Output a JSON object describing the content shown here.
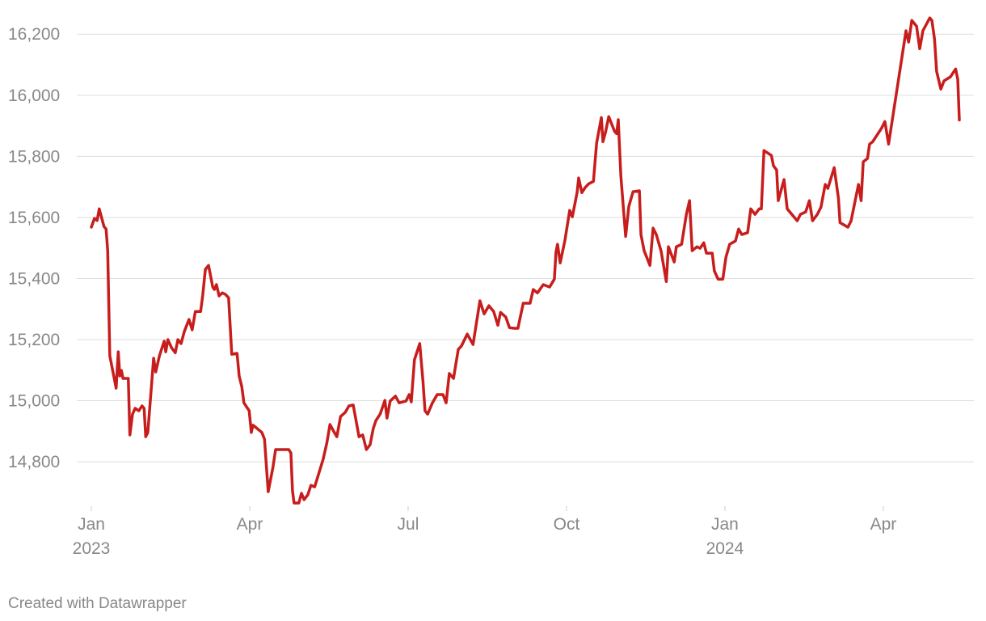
{
  "chart_data": {
    "type": "line",
    "footer": "Created with Datawrapper",
    "x": [
      0,
      0.06,
      0.11,
      0.15,
      0.24,
      0.28,
      0.31,
      0.35,
      0.41,
      0.47,
      0.51,
      0.54,
      0.57,
      0.6,
      0.7,
      0.73,
      0.78,
      0.83,
      0.9,
      0.96,
      1.0,
      1.03,
      1.07,
      1.18,
      1.22,
      1.29,
      1.38,
      1.41,
      1.45,
      1.52,
      1.59,
      1.64,
      1.7,
      1.76,
      1.85,
      1.91,
      1.97,
      2.07,
      2.11,
      2.16,
      2.22,
      2.3,
      2.33,
      2.37,
      2.42,
      2.48,
      2.54,
      2.6,
      2.66,
      2.76,
      2.8,
      2.85,
      2.89,
      2.99,
      3.03,
      3.06,
      3.14,
      3.23,
      3.28,
      3.35,
      3.44,
      3.49,
      3.74,
      3.78,
      3.81,
      3.84,
      3.93,
      3.98,
      4.03,
      4.1,
      4.16,
      4.23,
      4.39,
      4.46,
      4.52,
      4.58,
      4.65,
      4.72,
      4.81,
      4.88,
      4.96,
      5.07,
      5.14,
      5.21,
      5.28,
      5.34,
      5.39,
      5.47,
      5.56,
      5.6,
      5.66,
      5.76,
      5.83,
      5.96,
      6.02,
      6.06,
      6.12,
      6.22,
      6.28,
      6.32,
      6.37,
      6.46,
      6.55,
      6.66,
      6.72,
      6.78,
      6.86,
      6.95,
      7.01,
      7.12,
      7.23,
      7.36,
      7.44,
      7.53,
      7.62,
      7.7,
      7.75,
      7.85,
      7.92,
      8.01,
      8.08,
      8.18,
      8.31,
      8.37,
      8.45,
      8.56,
      8.68,
      8.77,
      8.8,
      8.83,
      8.88,
      8.97,
      9.06,
      9.11,
      9.2,
      9.23,
      9.29,
      9.35,
      9.42,
      9.51,
      9.57,
      9.66,
      9.69,
      9.74,
      9.8,
      9.91,
      9.95,
      9.98,
      10.03,
      10.12,
      10.18,
      10.26,
      10.38,
      10.41,
      10.47,
      10.58,
      10.64,
      10.7,
      10.79,
      10.89,
      10.93,
      11.04,
      11.08,
      11.18,
      11.27,
      11.33,
      11.38,
      11.47,
      11.53,
      11.6,
      11.65,
      11.76,
      11.8,
      11.87,
      11.96,
      12.02,
      12.09,
      12.2,
      12.26,
      12.32,
      12.43,
      12.49,
      12.57,
      12.65,
      12.69,
      12.74,
      12.88,
      12.92,
      12.98,
      13.01,
      13.12,
      13.18,
      13.37,
      13.43,
      13.53,
      13.6,
      13.66,
      13.75,
      13.82,
      13.9,
      13.95,
      14.07,
      14.15,
      14.18,
      14.33,
      14.39,
      14.53,
      14.58,
      14.62,
      14.7,
      14.74,
      14.8,
      14.97,
      15.03,
      15.1,
      15.43,
      15.48,
      15.54,
      15.63,
      15.69,
      15.75,
      15.88,
      15.92,
      15.97,
      16.01,
      16.09,
      16.15,
      16.27,
      16.37,
      16.41,
      16.44
    ],
    "series": [
      {
        "color": "#c71e1d",
        "values": [
          15568,
          15597,
          15590,
          15628,
          15570,
          15562,
          15491,
          15147,
          15094,
          15041,
          15160,
          15081,
          15099,
          15073,
          15073,
          14888,
          14956,
          14975,
          14967,
          14983,
          14975,
          14882,
          14896,
          15139,
          15094,
          15147,
          15195,
          15160,
          15200,
          15173,
          15157,
          15200,
          15187,
          15226,
          15266,
          15232,
          15292,
          15292,
          15345,
          15430,
          15443,
          15372,
          15364,
          15380,
          15343,
          15353,
          15348,
          15337,
          15152,
          15155,
          15081,
          15046,
          14993,
          14967,
          14896,
          14920,
          14909,
          14896,
          14874,
          14702,
          14782,
          14840,
          14840,
          14829,
          14705,
          14665,
          14665,
          14697,
          14676,
          14692,
          14723,
          14718,
          14808,
          14861,
          14922,
          14903,
          14882,
          14948,
          14962,
          14983,
          14986,
          14882,
          14888,
          14840,
          14856,
          14909,
          14935,
          14956,
          15001,
          14943,
          14999,
          15015,
          14993,
          14999,
          15020,
          14996,
          15134,
          15187,
          15067,
          14967,
          14956,
          14993,
          15020,
          15020,
          14993,
          15089,
          15073,
          15168,
          15179,
          15218,
          15184,
          15327,
          15284,
          15311,
          15292,
          15247,
          15289,
          15274,
          15239,
          15237,
          15237,
          15319,
          15319,
          15364,
          15353,
          15380,
          15372,
          15398,
          15486,
          15512,
          15451,
          15525,
          15623,
          15602,
          15681,
          15729,
          15681,
          15697,
          15710,
          15718,
          15843,
          15927,
          15848,
          15880,
          15930,
          15882,
          15874,
          15920,
          15734,
          15538,
          15636,
          15684,
          15687,
          15544,
          15491,
          15443,
          15565,
          15544,
          15491,
          15390,
          15504,
          15454,
          15504,
          15512,
          15610,
          15655,
          15491,
          15504,
          15499,
          15517,
          15483,
          15483,
          15425,
          15398,
          15398,
          15470,
          15512,
          15523,
          15562,
          15544,
          15550,
          15628,
          15610,
          15628,
          15628,
          15819,
          15803,
          15769,
          15755,
          15655,
          15724,
          15628,
          15589,
          15610,
          15618,
          15655,
          15589,
          15610,
          15634,
          15708,
          15695,
          15763,
          15663,
          15583,
          15568,
          15589,
          15708,
          15655,
          15782,
          15793,
          15840,
          15848,
          15893,
          15914,
          15840,
          16211,
          16174,
          16245,
          16226,
          16152,
          16211,
          16253,
          16245,
          16184,
          16078,
          16020,
          16047,
          16060,
          16086,
          16052,
          15919
        ]
      }
    ],
    "xlim": [
      0,
      16.44
    ],
    "xticks": [
      {
        "value": 0,
        "label": "Jan 2023"
      },
      {
        "value": 3,
        "label": "Apr"
      },
      {
        "value": 6,
        "label": "Jul"
      },
      {
        "value": 9,
        "label": "Oct"
      },
      {
        "value": 12,
        "label": "Jan 2024"
      },
      {
        "value": 15,
        "label": "Apr"
      }
    ],
    "ylim": [
      14660,
      16280
    ],
    "yticks": [
      {
        "value": 14800,
        "label": "14,800"
      },
      {
        "value": 15000,
        "label": "15,000"
      },
      {
        "value": 15200,
        "label": "15,200"
      },
      {
        "value": 15400,
        "label": "15,400"
      },
      {
        "value": 15600,
        "label": "15,600"
      },
      {
        "value": 15800,
        "label": "15,800"
      },
      {
        "value": 16000,
        "label": "16,000"
      },
      {
        "value": 16200,
        "label": "16,200"
      }
    ],
    "grid": true
  }
}
